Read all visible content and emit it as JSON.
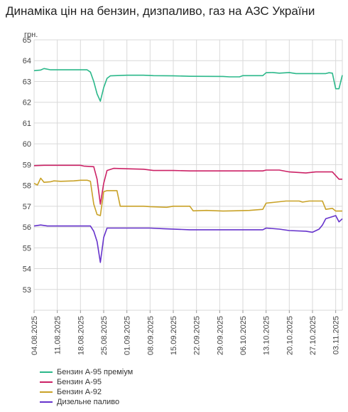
{
  "chart_data": {
    "type": "line",
    "title": "Динаміка цін на бензин, дизпаливо, газ на АЗС України",
    "ylabel": "грн.",
    "ylim": [
      52,
      65
    ],
    "yticks": [
      53,
      54,
      55,
      56,
      57,
      58,
      59,
      60,
      61,
      62,
      63,
      64,
      65
    ],
    "x_start": "2025-08-04",
    "x_end": "2025-11-05",
    "x_tick_labels": [
      "04.08.2025",
      "11.08.2025",
      "18.08.2025",
      "25.08.2025",
      "01.09.2025",
      "08.09.2025",
      "15.09.2025",
      "22.09.2025",
      "29.09.2025",
      "06.10.2025",
      "13.10.2025",
      "20.10.2025",
      "27.10.2025",
      "03.11.2025"
    ],
    "x_tick_dates": [
      "2025-08-04",
      "2025-08-11",
      "2025-08-18",
      "2025-08-25",
      "2025-09-01",
      "2025-09-08",
      "2025-09-15",
      "2025-09-22",
      "2025-09-29",
      "2025-10-06",
      "2025-10-13",
      "2025-10-20",
      "2025-10-27",
      "2025-11-03"
    ],
    "grid": true,
    "legend_position": "bottom-left",
    "series": [
      {
        "name": "Бензин А-95 преміум",
        "color": "#2bb88a",
        "points": [
          [
            "2025-08-04",
            63.52
          ],
          [
            "2025-08-06",
            63.55
          ],
          [
            "2025-08-07",
            63.62
          ],
          [
            "2025-08-09",
            63.56
          ],
          [
            "2025-08-15",
            63.56
          ],
          [
            "2025-08-20",
            63.56
          ],
          [
            "2025-08-21",
            63.45
          ],
          [
            "2025-08-22",
            63.0
          ],
          [
            "2025-08-23",
            62.4
          ],
          [
            "2025-08-24",
            62.05
          ],
          [
            "2025-08-25",
            62.7
          ],
          [
            "2025-08-26",
            63.15
          ],
          [
            "2025-08-27",
            63.27
          ],
          [
            "2025-09-01",
            63.3
          ],
          [
            "2025-09-06",
            63.3
          ],
          [
            "2025-09-09",
            63.28
          ],
          [
            "2025-09-15",
            63.27
          ],
          [
            "2025-09-20",
            63.25
          ],
          [
            "2025-09-30",
            63.24
          ],
          [
            "2025-10-02",
            63.22
          ],
          [
            "2025-10-05",
            63.22
          ],
          [
            "2025-10-06",
            63.28
          ],
          [
            "2025-10-12",
            63.28
          ],
          [
            "2025-10-13",
            63.42
          ],
          [
            "2025-10-15",
            63.43
          ],
          [
            "2025-10-17",
            63.4
          ],
          [
            "2025-10-20",
            63.43
          ],
          [
            "2025-10-22",
            63.38
          ],
          [
            "2025-10-31",
            63.38
          ],
          [
            "2025-11-01",
            63.42
          ],
          [
            "2025-11-02",
            63.4
          ],
          [
            "2025-11-03",
            62.65
          ],
          [
            "2025-11-04",
            62.65
          ],
          [
            "2025-11-05",
            63.3
          ],
          [
            "2025-11-06",
            63.3
          ]
        ]
      },
      {
        "name": "Бензин А-95",
        "color": "#cc2266",
        "points": [
          [
            "2025-08-04",
            58.95
          ],
          [
            "2025-08-07",
            58.97
          ],
          [
            "2025-08-18",
            58.97
          ],
          [
            "2025-08-19",
            58.93
          ],
          [
            "2025-08-22",
            58.9
          ],
          [
            "2025-08-23",
            58.3
          ],
          [
            "2025-08-24",
            57.1
          ],
          [
            "2025-08-25",
            58.1
          ],
          [
            "2025-08-26",
            58.72
          ],
          [
            "2025-08-28",
            58.82
          ],
          [
            "2025-09-01",
            58.8
          ],
          [
            "2025-09-06",
            58.78
          ],
          [
            "2025-09-09",
            58.72
          ],
          [
            "2025-09-15",
            58.72
          ],
          [
            "2025-09-20",
            58.7
          ],
          [
            "2025-10-05",
            58.7
          ],
          [
            "2025-10-12",
            58.7
          ],
          [
            "2025-10-13",
            58.74
          ],
          [
            "2025-10-17",
            58.74
          ],
          [
            "2025-10-20",
            58.65
          ],
          [
            "2025-10-25",
            58.6
          ],
          [
            "2025-10-28",
            58.65
          ],
          [
            "2025-11-02",
            58.65
          ],
          [
            "2025-11-04",
            58.3
          ],
          [
            "2025-11-06",
            58.3
          ]
        ]
      },
      {
        "name": "Бензин А-92",
        "color": "#c9a227",
        "points": [
          [
            "2025-08-04",
            58.1
          ],
          [
            "2025-08-05",
            58.02
          ],
          [
            "2025-08-06",
            58.35
          ],
          [
            "2025-08-07",
            58.15
          ],
          [
            "2025-08-09",
            58.18
          ],
          [
            "2025-08-10",
            58.22
          ],
          [
            "2025-08-12",
            58.2
          ],
          [
            "2025-08-16",
            58.22
          ],
          [
            "2025-08-18",
            58.25
          ],
          [
            "2025-08-20",
            58.25
          ],
          [
            "2025-08-21",
            58.2
          ],
          [
            "2025-08-22",
            57.1
          ],
          [
            "2025-08-23",
            56.6
          ],
          [
            "2025-08-24",
            56.55
          ],
          [
            "2025-08-25",
            57.7
          ],
          [
            "2025-08-26",
            57.75
          ],
          [
            "2025-08-29",
            57.75
          ],
          [
            "2025-08-30",
            57.0
          ],
          [
            "2025-09-06",
            57.0
          ],
          [
            "2025-09-08",
            56.98
          ],
          [
            "2025-09-13",
            56.95
          ],
          [
            "2025-09-15",
            57.0
          ],
          [
            "2025-09-20",
            57.0
          ],
          [
            "2025-09-21",
            56.78
          ],
          [
            "2025-09-25",
            56.8
          ],
          [
            "2025-09-30",
            56.77
          ],
          [
            "2025-10-03",
            56.78
          ],
          [
            "2025-10-08",
            56.8
          ],
          [
            "2025-10-12",
            56.85
          ],
          [
            "2025-10-13",
            57.15
          ],
          [
            "2025-10-16",
            57.2
          ],
          [
            "2025-10-19",
            57.25
          ],
          [
            "2025-10-23",
            57.25
          ],
          [
            "2025-10-24",
            57.2
          ],
          [
            "2025-10-26",
            57.25
          ],
          [
            "2025-10-29",
            57.25
          ],
          [
            "2025-10-30",
            57.25
          ],
          [
            "2025-10-31",
            56.85
          ],
          [
            "2025-11-02",
            56.9
          ],
          [
            "2025-11-03",
            56.77
          ],
          [
            "2025-11-06",
            56.77
          ]
        ]
      },
      {
        "name": "Дизельне паливо",
        "color": "#6633cc",
        "points": [
          [
            "2025-08-04",
            56.05
          ],
          [
            "2025-08-06",
            56.1
          ],
          [
            "2025-08-08",
            56.05
          ],
          [
            "2025-08-15",
            56.05
          ],
          [
            "2025-08-18",
            56.05
          ],
          [
            "2025-08-21",
            56.05
          ],
          [
            "2025-08-22",
            55.8
          ],
          [
            "2025-08-23",
            55.3
          ],
          [
            "2025-08-24",
            54.3
          ],
          [
            "2025-08-25",
            55.5
          ],
          [
            "2025-08-26",
            55.95
          ],
          [
            "2025-08-28",
            55.95
          ],
          [
            "2025-09-08",
            55.95
          ],
          [
            "2025-09-12",
            55.92
          ],
          [
            "2025-09-20",
            55.87
          ],
          [
            "2025-10-05",
            55.87
          ],
          [
            "2025-10-12",
            55.87
          ],
          [
            "2025-10-13",
            55.95
          ],
          [
            "2025-10-17",
            55.9
          ],
          [
            "2025-10-20",
            55.83
          ],
          [
            "2025-10-25",
            55.8
          ],
          [
            "2025-10-27",
            55.75
          ],
          [
            "2025-10-29",
            55.9
          ],
          [
            "2025-10-30",
            56.1
          ],
          [
            "2025-10-31",
            56.4
          ],
          [
            "2025-11-02",
            56.5
          ],
          [
            "2025-11-03",
            56.55
          ],
          [
            "2025-11-04",
            56.25
          ],
          [
            "2025-11-06",
            56.4
          ]
        ]
      }
    ]
  }
}
